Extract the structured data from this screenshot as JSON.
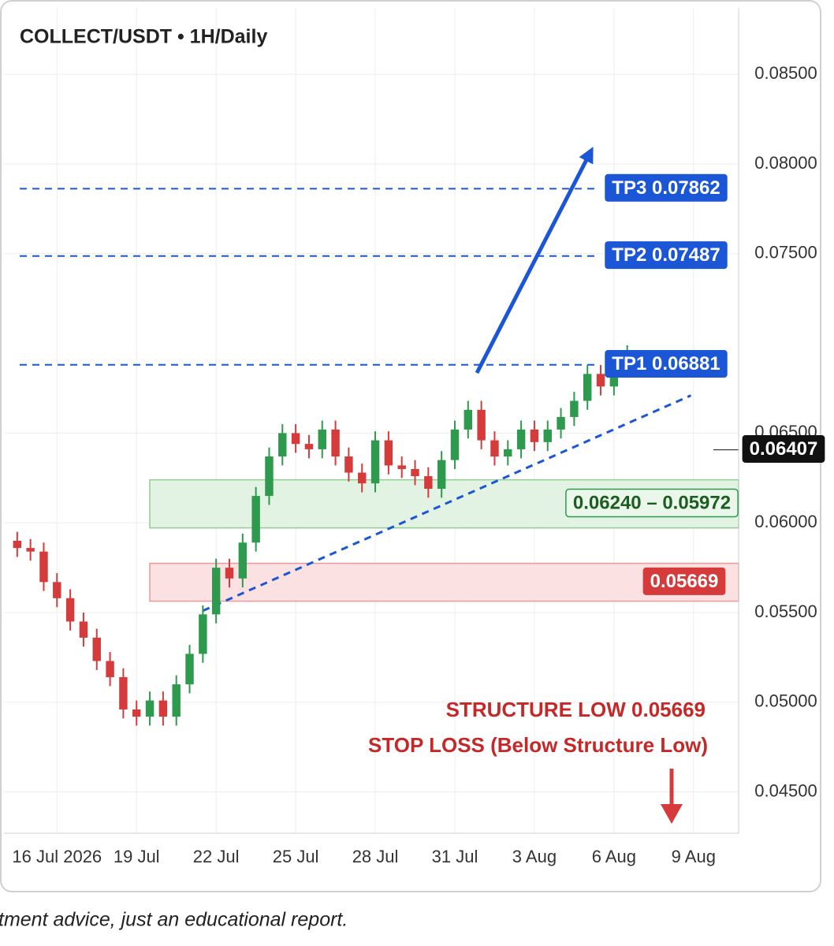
{
  "chart_data": {
    "type": "candlestick",
    "title": "COLLECT/USDT • 1H/Daily",
    "x": [
      -1.5,
      -1,
      -0.5,
      0,
      0.5,
      1,
      1.5,
      2,
      2.5,
      3,
      3.5,
      4,
      4.5,
      5,
      5.5,
      6,
      6.5,
      7,
      7.5,
      8,
      8.5,
      9,
      9.5,
      10,
      10.5,
      11,
      11.5,
      12,
      12.5,
      13,
      13.5,
      14,
      14.5,
      15,
      15.5,
      16,
      16.5,
      17,
      17.5,
      18,
      18.5,
      19,
      19.5,
      20,
      20.5,
      21,
      21.5
    ],
    "open": [
      0.059,
      0.0586,
      0.0584,
      0.0567,
      0.0558,
      0.0545,
      0.0536,
      0.0523,
      0.0514,
      0.0496,
      0.0492,
      0.0501,
      0.0492,
      0.051,
      0.0527,
      0.0549,
      0.0575,
      0.0569,
      0.0589,
      0.0615,
      0.0637,
      0.065,
      0.0644,
      0.0641,
      0.0652,
      0.0637,
      0.0628,
      0.0622,
      0.0646,
      0.0632,
      0.063,
      0.0626,
      0.0619,
      0.0635,
      0.0652,
      0.0663,
      0.0646,
      0.0637,
      0.0641,
      0.0652,
      0.0645,
      0.0652,
      0.0659,
      0.0668,
      0.0683,
      0.0676,
      0.069
    ],
    "high": [
      0.0595,
      0.0591,
      0.0589,
      0.0572,
      0.0563,
      0.055,
      0.0541,
      0.0528,
      0.0519,
      0.0501,
      0.0506,
      0.0506,
      0.0515,
      0.0532,
      0.0554,
      0.058,
      0.058,
      0.0594,
      0.062,
      0.0642,
      0.0655,
      0.0655,
      0.0649,
      0.0657,
      0.0657,
      0.0642,
      0.0633,
      0.0651,
      0.0651,
      0.0637,
      0.0635,
      0.0631,
      0.064,
      0.0657,
      0.0668,
      0.0668,
      0.0651,
      0.0646,
      0.0657,
      0.0657,
      0.0657,
      0.0664,
      0.0673,
      0.0688,
      0.0688,
      0.0695,
      0.0699
    ],
    "low": [
      0.0581,
      0.0579,
      0.0562,
      0.0553,
      0.054,
      0.0531,
      0.0518,
      0.0509,
      0.0491,
      0.0487,
      0.0487,
      0.0487,
      0.0487,
      0.0505,
      0.0522,
      0.0544,
      0.0564,
      0.0564,
      0.0584,
      0.061,
      0.0632,
      0.0639,
      0.0636,
      0.0636,
      0.0632,
      0.0623,
      0.0617,
      0.0617,
      0.0627,
      0.0625,
      0.0621,
      0.0614,
      0.0614,
      0.063,
      0.0647,
      0.0641,
      0.0632,
      0.0632,
      0.0636,
      0.064,
      0.064,
      0.0647,
      0.0654,
      0.0663,
      0.0671,
      0.0671,
      0.0685
    ],
    "close": [
      0.0586,
      0.0584,
      0.0567,
      0.0558,
      0.0545,
      0.0536,
      0.0523,
      0.0514,
      0.0496,
      0.0492,
      0.0501,
      0.0492,
      0.051,
      0.0527,
      0.0549,
      0.0575,
      0.0569,
      0.0589,
      0.0615,
      0.0637,
      0.065,
      0.0644,
      0.0641,
      0.0652,
      0.0637,
      0.0628,
      0.0622,
      0.0646,
      0.0632,
      0.063,
      0.0626,
      0.0619,
      0.0635,
      0.0652,
      0.0663,
      0.0646,
      0.0637,
      0.0641,
      0.0652,
      0.0645,
      0.0652,
      0.0659,
      0.0668,
      0.0683,
      0.0676,
      0.069,
      0.0694
    ],
    "up_color": "#2e9a4e",
    "down_color": "#d63b3b",
    "xlim": [
      -2,
      25.7
    ],
    "xticks": [
      {
        "value": 0,
        "label": "16 Jul 2026"
      },
      {
        "value": 3,
        "label": "19 Jul"
      },
      {
        "value": 6,
        "label": "22 Jul"
      },
      {
        "value": 9,
        "label": "25 Jul"
      },
      {
        "value": 12,
        "label": "28 Jul"
      },
      {
        "value": 15,
        "label": "31 Jul"
      },
      {
        "value": 18,
        "label": "3 Aug"
      },
      {
        "value": 21,
        "label": "6 Aug"
      },
      {
        "value": 24,
        "label": "9 Aug"
      }
    ],
    "ylim": [
      0.0427,
      0.0887
    ],
    "yticks": [
      {
        "value": 0.045,
        "label": "0.04500"
      },
      {
        "value": 0.05,
        "label": "0.05000"
      },
      {
        "value": 0.055,
        "label": "0.05500"
      },
      {
        "value": 0.06,
        "label": "0.06000"
      },
      {
        "value": 0.065,
        "label": "0.06500"
      },
      {
        "value": 0.075,
        "label": "0.07500"
      },
      {
        "value": 0.08,
        "label": "0.08000"
      },
      {
        "value": 0.085,
        "label": "0.08500"
      }
    ],
    "grid": true,
    "targets": [
      {
        "value": 0.06881,
        "label": "TP1 0.06881"
      },
      {
        "value": 0.07487,
        "label": "TP2 0.07487"
      },
      {
        "value": 0.07862,
        "label": "TP3 0.07862"
      }
    ],
    "target_color": "#1a56d6",
    "current_price": {
      "value": 0.06407,
      "label": "0.06407"
    },
    "support_zone": {
      "high": 0.0624,
      "low": 0.05972,
      "label": "0.06240 – 0.05972"
    },
    "stop_zone": {
      "value": 0.05669,
      "label": "0.05669"
    },
    "trendline": {
      "x": [
        5.5,
        23.9
      ],
      "y": [
        0.0551,
        0.0671
      ]
    },
    "annotations": [
      "STRUCTURE LOW 0.05669",
      "STOP LOSS (Below Structure Low)"
    ],
    "footer": "tment advice, just an educational report."
  }
}
